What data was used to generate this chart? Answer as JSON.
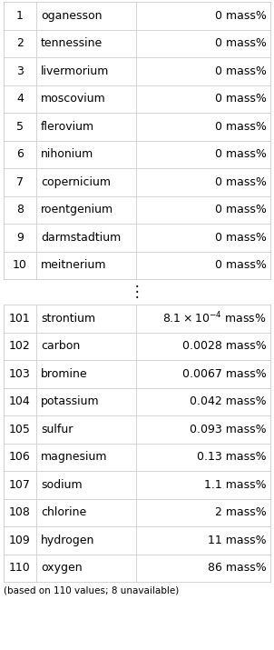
{
  "top_rows": [
    {
      "rank": "1",
      "name": "oganesson",
      "value": "0 mass%"
    },
    {
      "rank": "2",
      "name": "tennessine",
      "value": "0 mass%"
    },
    {
      "rank": "3",
      "name": "livermorium",
      "value": "0 mass%"
    },
    {
      "rank": "4",
      "name": "moscovium",
      "value": "0 mass%"
    },
    {
      "rank": "5",
      "name": "flerovium",
      "value": "0 mass%"
    },
    {
      "rank": "6",
      "name": "nihonium",
      "value": "0 mass%"
    },
    {
      "rank": "7",
      "name": "copernicium",
      "value": "0 mass%"
    },
    {
      "rank": "8",
      "name": "roentgenium",
      "value": "0 mass%"
    },
    {
      "rank": "9",
      "name": "darmstadtium",
      "value": "0 mass%"
    },
    {
      "rank": "10",
      "name": "meitnerium",
      "value": "0 mass%"
    }
  ],
  "bottom_rows": [
    {
      "rank": "101",
      "name": "strontium",
      "value": "$8.1\\times10^{-4}$ mass%"
    },
    {
      "rank": "102",
      "name": "carbon",
      "value": "0.0028 mass%"
    },
    {
      "rank": "103",
      "name": "bromine",
      "value": "0.0067 mass%"
    },
    {
      "rank": "104",
      "name": "potassium",
      "value": "0.042 mass%"
    },
    {
      "rank": "105",
      "name": "sulfur",
      "value": "0.093 mass%"
    },
    {
      "rank": "106",
      "name": "magnesium",
      "value": "0.13 mass%"
    },
    {
      "rank": "107",
      "name": "sodium",
      "value": "1.1 mass%"
    },
    {
      "rank": "108",
      "name": "chlorine",
      "value": "2 mass%"
    },
    {
      "rank": "109",
      "name": "hydrogen",
      "value": "11 mass%"
    },
    {
      "rank": "110",
      "name": "oxygen",
      "value": "86 mass%"
    }
  ],
  "footer": "(based on 110 values; 8 unavailable)",
  "bg_color": "#ffffff",
  "line_color": "#cccccc",
  "text_color": "#000000",
  "font_size": 9.0
}
